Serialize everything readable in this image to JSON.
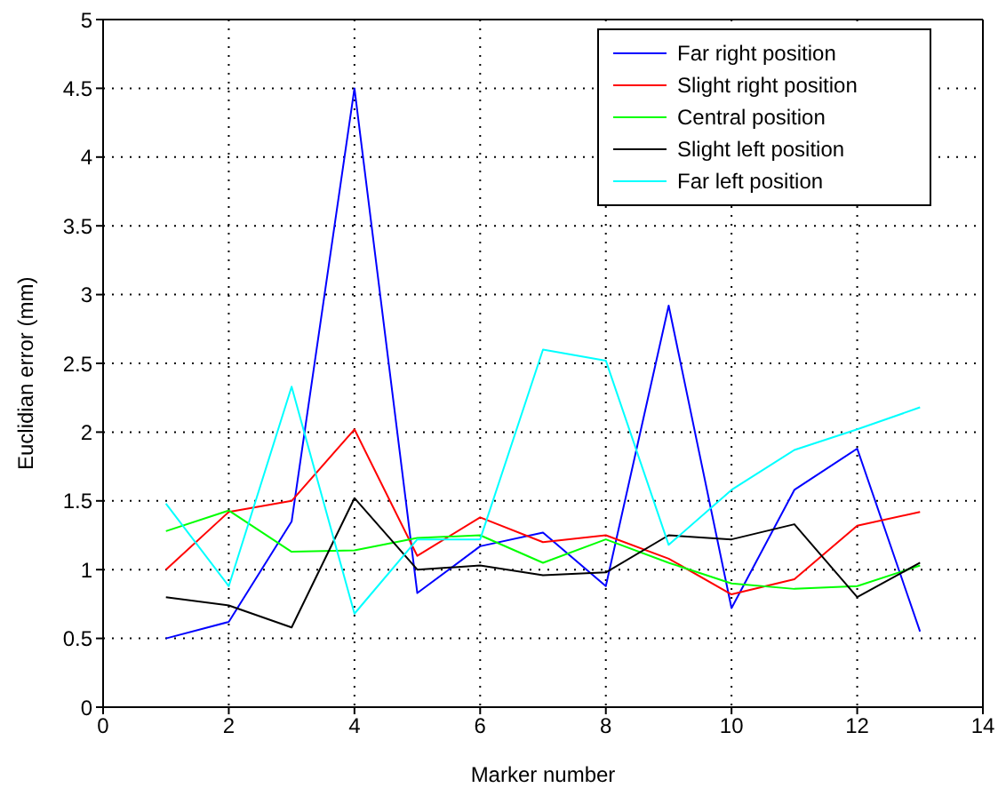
{
  "chart_data": {
    "type": "line",
    "xlabel": "Marker number",
    "ylabel": "Euclidian error (mm)",
    "x": [
      1,
      2,
      3,
      4,
      5,
      6,
      7,
      8,
      9,
      10,
      11,
      12,
      13
    ],
    "xlim": [
      0,
      14
    ],
    "xticks": [
      0,
      2,
      4,
      6,
      8,
      10,
      12,
      14
    ],
    "ylim": [
      0,
      5
    ],
    "yticks": [
      0,
      0.5,
      1,
      1.5,
      2,
      2.5,
      3,
      3.5,
      4,
      4.5,
      5
    ],
    "grid": true,
    "legend": "top right",
    "marker": "none",
    "line_style": "solid",
    "series": [
      {
        "name": "Far right position",
        "color": "#0000ff",
        "values": [
          0.5,
          0.62,
          1.35,
          4.5,
          0.83,
          1.17,
          1.27,
          0.88,
          2.92,
          0.72,
          1.58,
          1.88,
          0.55
        ]
      },
      {
        "name": "Slight right position",
        "color": "#ff0000",
        "values": [
          1.0,
          1.42,
          1.5,
          2.02,
          1.1,
          1.38,
          1.2,
          1.25,
          1.08,
          0.82,
          0.93,
          1.32,
          1.42
        ]
      },
      {
        "name": "Central position",
        "color": "#00ff00",
        "values": [
          1.28,
          1.43,
          1.13,
          1.14,
          1.23,
          1.25,
          1.05,
          1.22,
          1.05,
          0.9,
          0.86,
          0.88,
          1.03
        ]
      },
      {
        "name": "Slight left position",
        "color": "#000000",
        "values": [
          0.8,
          0.74,
          0.58,
          1.52,
          1.0,
          1.03,
          0.96,
          0.98,
          1.25,
          1.22,
          1.33,
          0.8,
          1.05
        ]
      },
      {
        "name": "Far left position",
        "color": "#00ffff",
        "values": [
          1.48,
          0.88,
          2.33,
          0.68,
          1.22,
          1.22,
          2.6,
          2.52,
          1.18,
          1.58,
          1.87,
          2.02,
          2.18
        ]
      }
    ]
  }
}
